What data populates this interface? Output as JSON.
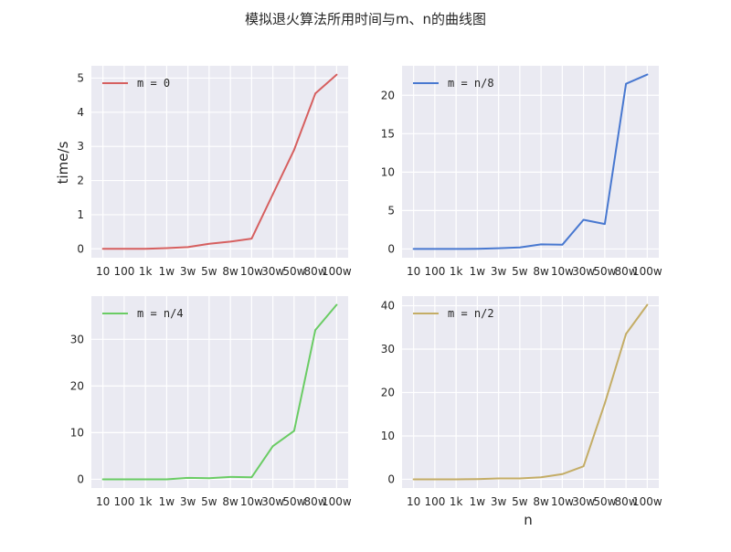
{
  "figure": {
    "title": "模拟退火算法所用时间与m、n的曲线图",
    "xlabel": "n",
    "ylabel": "time/s"
  },
  "chart_data": [
    {
      "type": "line",
      "categories": [
        "10",
        "100",
        "1k",
        "1w",
        "3w",
        "5w",
        "8w",
        "10w",
        "30w",
        "50w",
        "80w",
        "100w"
      ],
      "series": [
        {
          "name": "m = 0",
          "values": [
            0.0,
            0.0,
            0.0,
            0.02,
            0.05,
            0.15,
            0.21,
            0.3,
            1.6,
            2.9,
            4.55,
            5.1
          ],
          "color": "#d65f5f"
        }
      ],
      "ylim": [
        -0.26,
        5.36
      ],
      "yticks": [
        0,
        1,
        2,
        3,
        4,
        5
      ],
      "ylabel": "time/s",
      "xlabel": "",
      "legend": "top-left",
      "grid": true
    },
    {
      "type": "line",
      "categories": [
        "10",
        "100",
        "1k",
        "1w",
        "3w",
        "5w",
        "8w",
        "10w",
        "30w",
        "50w",
        "80w",
        "100w"
      ],
      "series": [
        {
          "name": "m = n/8",
          "values": [
            0.0,
            0.0,
            0.0,
            0.03,
            0.1,
            0.2,
            0.6,
            0.55,
            3.8,
            3.25,
            21.5,
            22.7
          ],
          "color": "#4878d0"
        }
      ],
      "ylim": [
        -1.14,
        23.84
      ],
      "yticks": [
        0,
        5,
        10,
        15,
        20
      ],
      "ylabel": "",
      "xlabel": "",
      "legend": "top-left",
      "grid": true
    },
    {
      "type": "line",
      "categories": [
        "10",
        "100",
        "1k",
        "1w",
        "3w",
        "5w",
        "8w",
        "10w",
        "30w",
        "50w",
        "80w",
        "100w"
      ],
      "series": [
        {
          "name": "m = n/4",
          "values": [
            0.0,
            0.0,
            0.0,
            0.0,
            0.3,
            0.25,
            0.5,
            0.45,
            7.1,
            10.4,
            32.0,
            37.4
          ],
          "color": "#6acc64"
        }
      ],
      "ylim": [
        -1.87,
        39.27
      ],
      "yticks": [
        0,
        10,
        20,
        30
      ],
      "ylabel": "",
      "xlabel": "",
      "legend": "top-left",
      "grid": true
    },
    {
      "type": "line",
      "categories": [
        "10",
        "100",
        "1k",
        "1w",
        "3w",
        "5w",
        "8w",
        "10w",
        "30w",
        "50w",
        "80w",
        "100w"
      ],
      "series": [
        {
          "name": "m = n/2",
          "values": [
            0.0,
            0.0,
            0.0,
            0.05,
            0.2,
            0.2,
            0.45,
            1.2,
            3.0,
            17.5,
            33.5,
            40.2
          ],
          "color": "#c4ad66"
        }
      ],
      "ylim": [
        -2.01,
        42.21
      ],
      "yticks": [
        0,
        10,
        20,
        30,
        40
      ],
      "ylabel": "",
      "xlabel": "n",
      "legend": "top-left",
      "grid": true
    }
  ]
}
